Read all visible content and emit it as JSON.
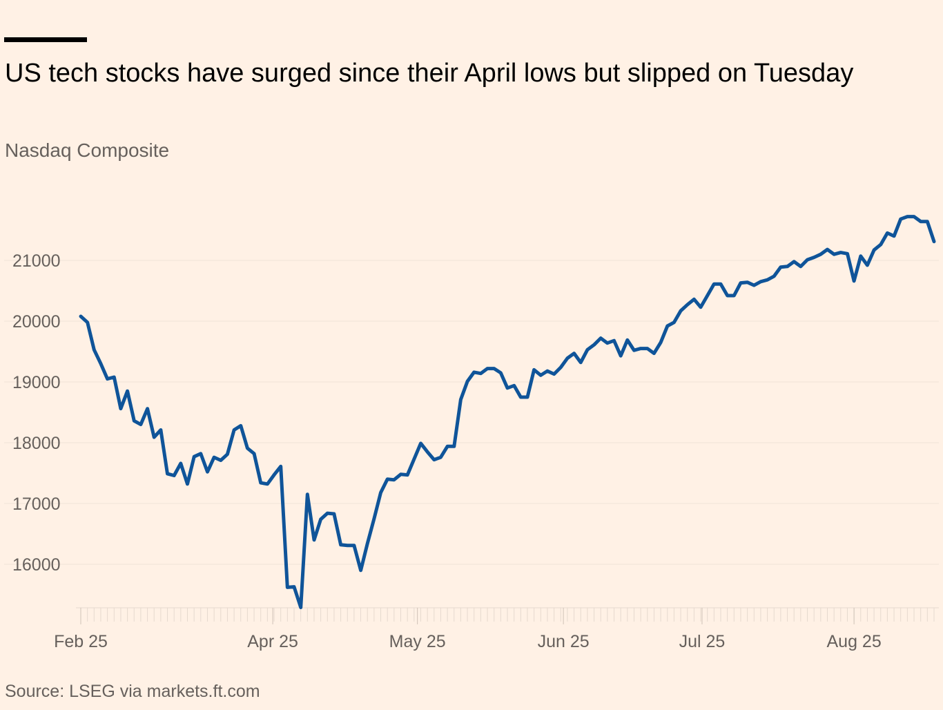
{
  "title": "US tech stocks have surged since their April lows but slipped on Tuesday",
  "subtitle": "Nasdaq Composite",
  "source": "Source: LSEG via markets.ft.com",
  "colors": {
    "background": "#FFF1E5",
    "line": "#0F5499",
    "text": "#66605C",
    "grid": "#EFE3D8"
  },
  "chart_data": {
    "type": "line",
    "title": "US tech stocks have surged since their April lows but slipped on Tuesday",
    "subtitle": "Nasdaq Composite",
    "xlabel": "",
    "ylabel": "",
    "ylim": [
      15270,
      21900
    ],
    "grid": true,
    "y_ticks": [
      16000,
      17000,
      18000,
      19000,
      20000,
      21000
    ],
    "y_tick_labels": [
      "16000",
      "17000",
      "18000",
      "19000",
      "20000",
      "21000"
    ],
    "x_ticks": [
      {
        "label": "Feb 25",
        "index": 0
      },
      {
        "label": "Apr 25",
        "index": 28.8
      },
      {
        "label": "May 25",
        "index": 50.5
      },
      {
        "label": "Jun 25",
        "index": 72.4
      },
      {
        "label": "Jul 25",
        "index": 93.2
      },
      {
        "label": "Aug 25",
        "index": 116
      }
    ],
    "series": [
      {
        "name": "Nasdaq Composite",
        "values": [
          20080,
          19980,
          19530,
          19300,
          19050,
          19080,
          18560,
          18850,
          18360,
          18300,
          18560,
          18090,
          18210,
          17490,
          17460,
          17660,
          17320,
          17770,
          17820,
          17520,
          17760,
          17710,
          17810,
          18210,
          18280,
          17910,
          17820,
          17340,
          17320,
          17470,
          17610,
          15620,
          15630,
          15290,
          17150,
          16400,
          16740,
          16840,
          16830,
          16320,
          16310,
          16310,
          15900,
          16340,
          16750,
          17180,
          17400,
          17390,
          17480,
          17470,
          17730,
          17990,
          17850,
          17720,
          17760,
          17940,
          17940,
          18710,
          19010,
          19160,
          19140,
          19220,
          19220,
          19150,
          18900,
          18940,
          18750,
          18750,
          19200,
          19110,
          19180,
          19130,
          19240,
          19390,
          19470,
          19320,
          19530,
          19610,
          19720,
          19640,
          19680,
          19430,
          19690,
          19520,
          19550,
          19550,
          19470,
          19650,
          19920,
          19980,
          20170,
          20270,
          20360,
          20230,
          20420,
          20610,
          20610,
          20420,
          20420,
          20630,
          20640,
          20590,
          20650,
          20680,
          20740,
          20890,
          20900,
          20980,
          20900,
          21010,
          21050,
          21100,
          21180,
          21100,
          21130,
          21110,
          20660,
          21070,
          20920,
          21170,
          21260,
          21450,
          21400,
          21680,
          21720,
          21720,
          21640,
          21640,
          21310
        ]
      }
    ]
  }
}
